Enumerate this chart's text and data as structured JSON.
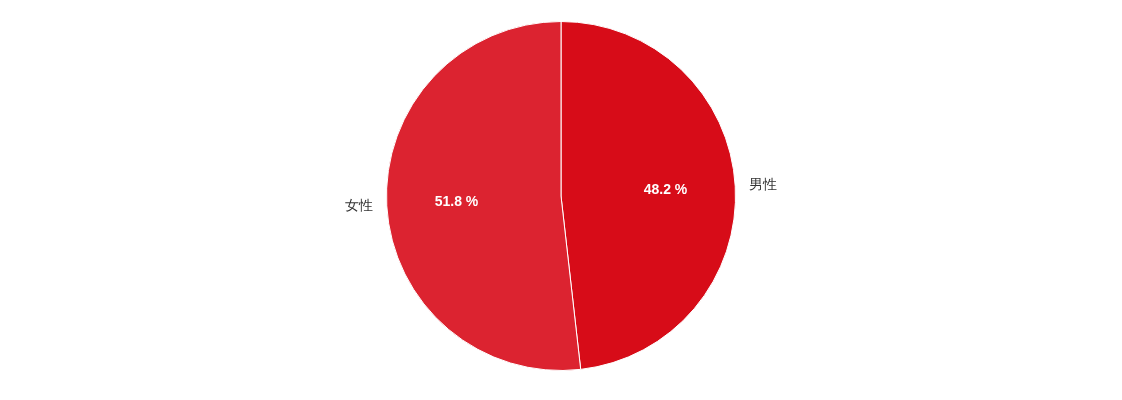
{
  "chart_data": {
    "type": "pie",
    "categories": [
      "男性",
      "女性"
    ],
    "values": [
      48.2,
      51.8
    ],
    "colors": [
      "#d70c18",
      "#dc2330"
    ],
    "value_labels": [
      "48.2 %",
      "51.8 %"
    ],
    "legend": false
  }
}
